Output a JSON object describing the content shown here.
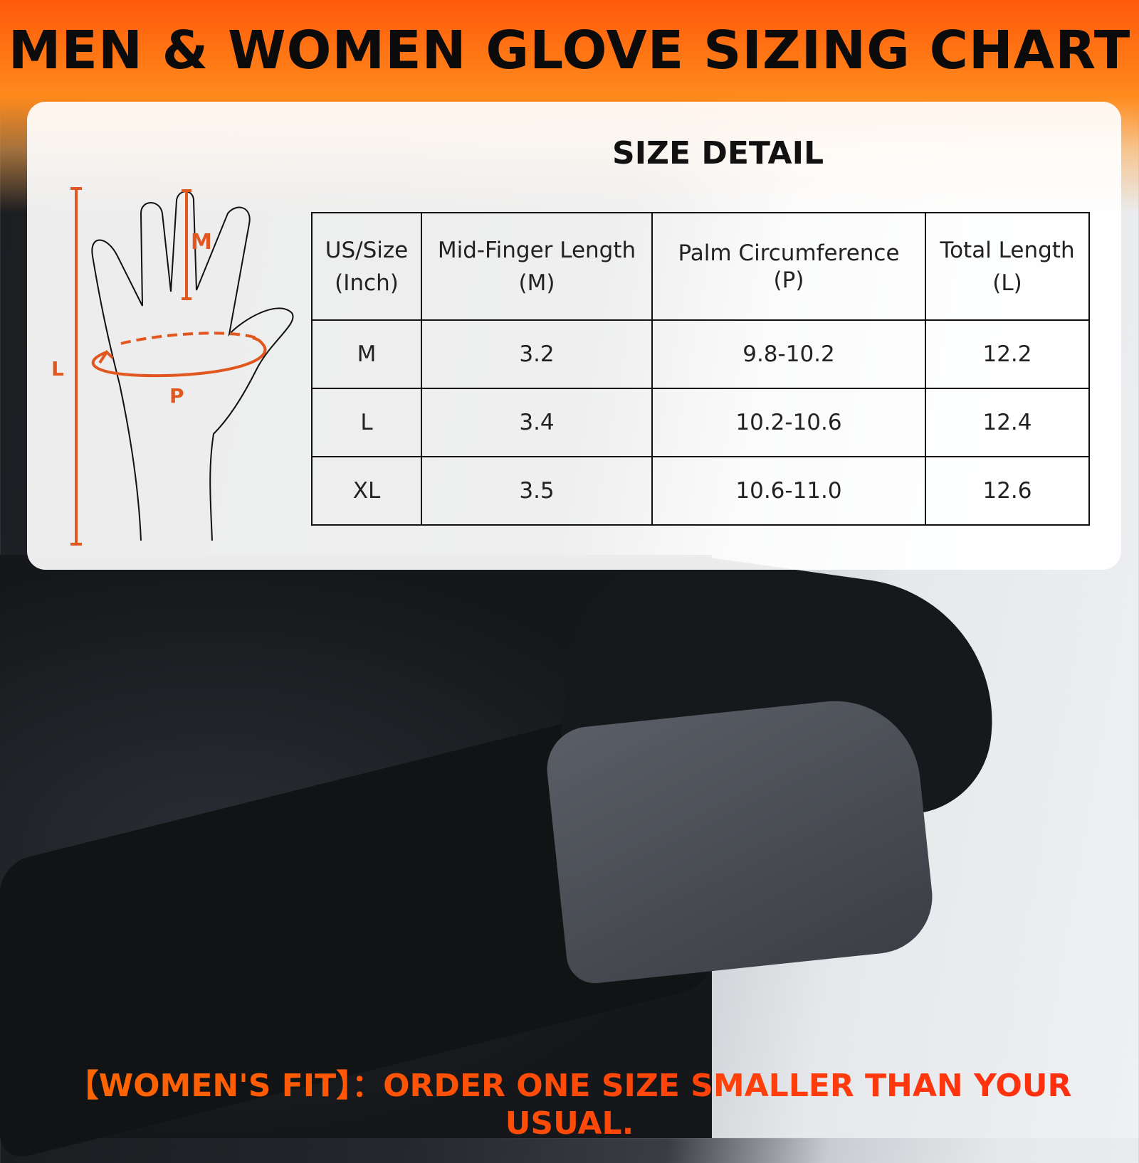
{
  "title": "MEN & WOMEN GLOVE SIZING CHART",
  "size_detail": {
    "heading": "SIZE DETAIL",
    "headers": [
      {
        "line1": "US/Size",
        "line2": "(Inch)"
      },
      {
        "line1": "Mid-Finger Length",
        "line2": "(M)"
      },
      {
        "line1": "Palm  Circumference",
        "line2": "(P)"
      },
      {
        "line1": "Total Length",
        "line2": "(L)"
      }
    ],
    "rows": [
      [
        "M",
        "3.2",
        "9.8-10.2",
        "12.2"
      ],
      [
        "L",
        "3.4",
        "10.2-10.6",
        "12.4"
      ],
      [
        "XL",
        "3.5",
        "10.6-11.0",
        "12.6"
      ]
    ]
  },
  "diagram": {
    "labels": {
      "mid_finger": "M",
      "palm": "P",
      "length": "L"
    },
    "accent": "#e2571f"
  },
  "footer": "【WOMEN'S FIT】：ORDER ONE SIZE SMALLER THAN YOUR USUAL."
}
